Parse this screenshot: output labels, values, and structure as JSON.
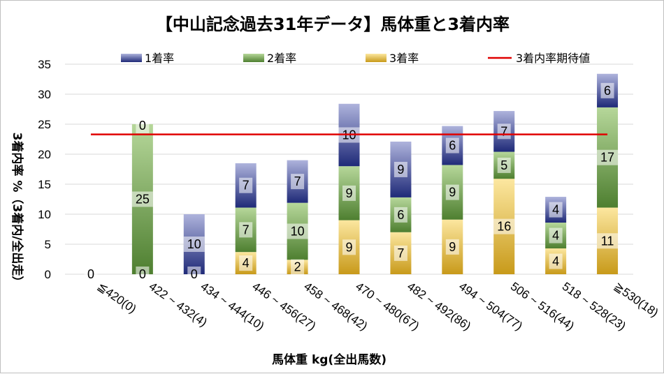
{
  "chart_data": {
    "type": "bar",
    "stacked": true,
    "title": "【中山記念過去31年データ】馬体重と3着内率",
    "xlabel": "馬体重 kg(全出馬数)",
    "ylabel": "3着内率 %（3着内/全出走）",
    "ylim": [
      0,
      35
    ],
    "yticks": [
      "0",
      "5",
      "10",
      "15",
      "20",
      "25",
      "30",
      "35"
    ],
    "grid": true,
    "legend_position": "top",
    "categories": [
      "≦420(0)",
      "422 ~ 432(4)",
      "434 ~ 444(10)",
      "446 ~ 456(27)",
      "458 ~ 468(42)",
      "470 ~ 480(67)",
      "482 ~ 492(86)",
      "494 ~ 504(77)",
      "506 ~ 516(44)",
      "518 ~ 528(23)",
      "≧530(18)"
    ],
    "series": [
      {
        "name": "3着率",
        "color_top": "#fce7a0",
        "color_bottom": "#c89a1a",
        "values": [
          0,
          0,
          0,
          3.7,
          2.4,
          9.0,
          7.0,
          9.1,
          15.9,
          4.3,
          11.1
        ],
        "labels": [
          "",
          "0",
          "0",
          "4",
          "2",
          "9",
          "7",
          "9",
          "16",
          "4",
          "11"
        ]
      },
      {
        "name": "2着率",
        "color_top": "#b6d79a",
        "color_bottom": "#4e7f30",
        "values": [
          0,
          25.0,
          0,
          7.4,
          9.5,
          9.0,
          5.8,
          9.1,
          4.5,
          4.3,
          16.7
        ],
        "labels": [
          "",
          "25",
          "",
          "7",
          "10",
          "9",
          "6",
          "9",
          "5",
          "4",
          "17"
        ]
      },
      {
        "name": "1着率",
        "color_top": "#aeb3dc",
        "color_bottom": "#1f2a78",
        "values": [
          0,
          0,
          10.0,
          7.4,
          7.1,
          10.4,
          9.3,
          6.5,
          6.8,
          4.3,
          5.6
        ],
        "labels": [
          "0",
          "0",
          "10",
          "7",
          "7",
          "10",
          "9",
          "6",
          "7",
          "4",
          "6"
        ]
      }
    ],
    "reference_line": {
      "name": "3着内率期待値",
      "value": 23.3,
      "color": "#e00000"
    },
    "legend_order": [
      "1着率",
      "2着率",
      "3着率",
      "3着内率期待値"
    ]
  }
}
